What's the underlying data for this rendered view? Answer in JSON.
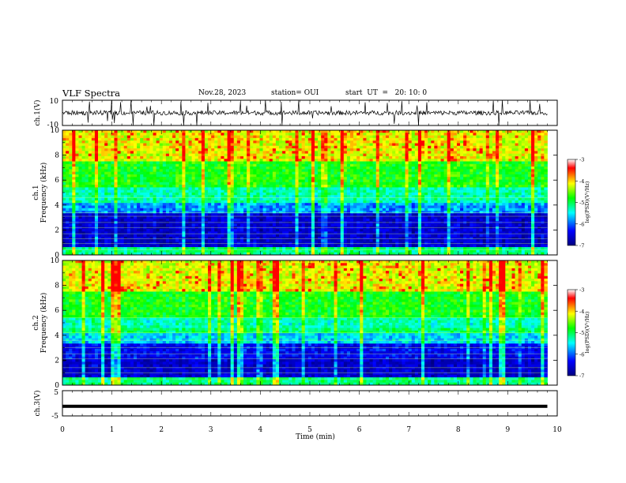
{
  "header": {
    "title": "VLF Spectra",
    "date": "Nov.28, 2023",
    "station": "station= OUI",
    "start": "start  UT  =   20: 10: 0"
  },
  "chart_data": [
    {
      "type": "line",
      "panel": "ch1-waveform",
      "ylabel": "ch.1(V)",
      "ylim": [
        -10,
        10
      ],
      "yticks": [
        "10",
        "-10"
      ],
      "xlim": [
        0,
        10
      ]
    },
    {
      "type": "heatmap",
      "panel": "ch1-spectrogram",
      "ylabel": "ch.1\nFrequency  (kHz)",
      "ylabel_lines": [
        "ch.1",
        "Frequency  (kHz)"
      ],
      "ylim": [
        0,
        10
      ],
      "yticks": [
        "0",
        "2",
        "4",
        "6",
        "8",
        "10"
      ],
      "xlim": [
        0,
        10
      ],
      "data_end_min": 9.8,
      "colorbar": {
        "label": "log(PSD)(V²/Hz)",
        "range": [
          -7,
          -3
        ],
        "ticks": [
          "-3",
          "-4",
          "-5",
          "-6",
          "-7"
        ],
        "colormap": [
          "#000080",
          "#0000ff",
          "#00ffff",
          "#00ff00",
          "#ffff00",
          "#ff0000",
          "#ffffff"
        ]
      }
    },
    {
      "type": "heatmap",
      "panel": "ch2-spectrogram",
      "ylabel": "ch.2\nFrequency  (kHz)",
      "ylabel_lines": [
        "ch.2",
        "Frequency  (kHz)"
      ],
      "ylim": [
        0,
        10
      ],
      "yticks": [
        "0",
        "2",
        "4",
        "6",
        "8",
        "10"
      ],
      "xlim": [
        0,
        10
      ],
      "data_end_min": 9.8,
      "colorbar": {
        "label": "log(PSD)(V²/Hz)",
        "range": [
          -7,
          -3
        ],
        "ticks": [
          "-3",
          "-4",
          "-5",
          "-6",
          "-7"
        ],
        "colormap": [
          "#000080",
          "#0000ff",
          "#00ffff",
          "#00ff00",
          "#ffff00",
          "#ff0000",
          "#ffffff"
        ]
      }
    },
    {
      "type": "line",
      "panel": "ch3-waveform",
      "ylabel": "ch.3(V)",
      "ylim": [
        -5,
        5
      ],
      "yticks": [
        "5",
        "-5"
      ],
      "xlim": [
        0,
        10
      ],
      "level": -1.2
    }
  ],
  "xaxis": {
    "label": "Time  (min)",
    "ticks": [
      "0",
      "1",
      "2",
      "3",
      "4",
      "5",
      "6",
      "7",
      "8",
      "9",
      "10"
    ]
  }
}
